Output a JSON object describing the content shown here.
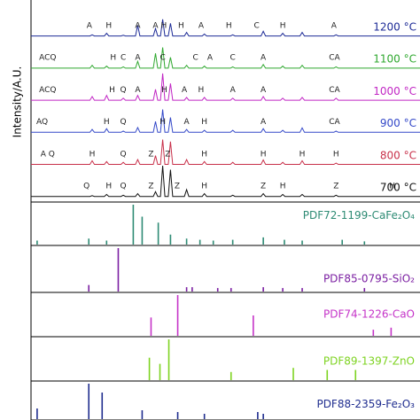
{
  "chart_data": [
    {
      "type": "line",
      "y_label": "Intensity/A.U.",
      "xlim": [
        10,
        80
      ],
      "ylim": [
        0,
        100
      ],
      "x": [
        10,
        20.6,
        21,
        21.4,
        23.2,
        23.6,
        24,
        26.2,
        26.6,
        27,
        28.8,
        29.2,
        29.6,
        32,
        32.4,
        32.8,
        33.3,
        33.7,
        34.1,
        34.7,
        35.1,
        35.5,
        37.6,
        38,
        38.4,
        40.8,
        41.2,
        41.6,
        45.9,
        46.3,
        46.7,
        51.4,
        51.8,
        52.2,
        54.9,
        55.3,
        55.7,
        58.4,
        58.8,
        59.2,
        64.5,
        64.9,
        65.3,
        80
      ],
      "series": [
        {
          "name": "1200 °C",
          "color": "#1c2a96",
          "values": [
            3,
            3,
            6,
            3,
            3,
            10,
            3,
            3,
            5,
            3,
            3,
            30,
            3,
            3,
            22,
            3,
            3,
            45,
            3,
            3,
            35,
            3,
            3,
            12,
            3,
            3,
            8,
            3,
            3,
            6,
            3,
            3,
            15,
            3,
            3,
            10,
            3,
            3,
            12,
            3,
            3,
            6,
            3,
            3
          ],
          "annotations": [
            {
              "text": "A",
              "x": 20.5
            },
            {
              "text": "H",
              "x": 24
            },
            {
              "text": "A",
              "x": 29.2
            },
            {
              "text": "A",
              "x": 32.4
            },
            {
              "text": "H",
              "x": 33.9
            },
            {
              "text": "H",
              "x": 37
            },
            {
              "text": "A",
              "x": 40.6
            },
            {
              "text": "H",
              "x": 45.6
            },
            {
              "text": "C",
              "x": 50.6
            },
            {
              "text": "H",
              "x": 55.3
            },
            {
              "text": "A",
              "x": 64.5
            }
          ]
        },
        {
          "name": "1100 °C",
          "color": "#2fa82f",
          "values": [
            3,
            3,
            10,
            3,
            3,
            8,
            3,
            3,
            6,
            3,
            3,
            20,
            3,
            3,
            40,
            3,
            3,
            55,
            3,
            3,
            30,
            3,
            3,
            10,
            3,
            3,
            8,
            3,
            3,
            6,
            3,
            3,
            12,
            3,
            3,
            8,
            3,
            3,
            10,
            3,
            3,
            6,
            3,
            3
          ],
          "annotations": [
            {
              "text": "ACQ",
              "x": 13
            },
            {
              "text": "H",
              "x": 24.8
            },
            {
              "text": "C",
              "x": 26.6
            },
            {
              "text": "A",
              "x": 29.2
            },
            {
              "text": "C",
              "x": 33.7
            },
            {
              "text": "C",
              "x": 39.6
            },
            {
              "text": "A",
              "x": 42.2
            },
            {
              "text": "C",
              "x": 46.3
            },
            {
              "text": "A",
              "x": 51.8
            },
            {
              "text": "CA",
              "x": 64.6
            }
          ]
        },
        {
          "name": "1000 °C",
          "color": "#c126c4",
          "values": [
            3,
            3,
            12,
            3,
            3,
            15,
            3,
            3,
            8,
            3,
            3,
            15,
            3,
            3,
            30,
            3,
            3,
            70,
            3,
            3,
            45,
            3,
            3,
            10,
            3,
            3,
            10,
            3,
            3,
            8,
            3,
            3,
            12,
            3,
            3,
            8,
            3,
            3,
            10,
            3,
            3,
            8,
            3,
            3
          ],
          "annotations": [
            {
              "text": "ACQ",
              "x": 13
            },
            {
              "text": "H",
              "x": 24.6
            },
            {
              "text": "Q",
              "x": 26.6
            },
            {
              "text": "A",
              "x": 29.2
            },
            {
              "text": "H",
              "x": 34
            },
            {
              "text": "A",
              "x": 37.6
            },
            {
              "text": "H",
              "x": 40.6
            },
            {
              "text": "A",
              "x": 46.3
            },
            {
              "text": "A",
              "x": 51.8
            },
            {
              "text": "CA",
              "x": 64.6
            }
          ]
        },
        {
          "name": "900 °C",
          "color": "#3348c8",
          "values": [
            3,
            3,
            10,
            3,
            3,
            12,
            3,
            3,
            6,
            3,
            3,
            15,
            3,
            3,
            30,
            3,
            3,
            60,
            3,
            3,
            40,
            3,
            3,
            10,
            3,
            3,
            8,
            3,
            3,
            8,
            3,
            3,
            12,
            3,
            3,
            8,
            3,
            3,
            14,
            3,
            3,
            6,
            3,
            3
          ],
          "annotations": [
            {
              "text": "AQ",
              "x": 12
            },
            {
              "text": "H",
              "x": 23.6
            },
            {
              "text": "Q",
              "x": 26.6
            },
            {
              "text": "H",
              "x": 33.7
            },
            {
              "text": "A",
              "x": 38
            },
            {
              "text": "H",
              "x": 41.2
            },
            {
              "text": "A",
              "x": 51.8
            },
            {
              "text": "CA",
              "x": 64.6
            }
          ]
        },
        {
          "name": "800 °C",
          "color": "#c8304a",
          "values": [
            3,
            3,
            12,
            3,
            3,
            10,
            3,
            3,
            8,
            3,
            3,
            15,
            3,
            3,
            25,
            3,
            3,
            65,
            3,
            3,
            60,
            3,
            3,
            15,
            3,
            3,
            10,
            3,
            3,
            8,
            3,
            3,
            14,
            3,
            3,
            8,
            3,
            3,
            12,
            3,
            3,
            6,
            3,
            3
          ],
          "annotations": [
            {
              "text": "A Q",
              "x": 13
            },
            {
              "text": "H",
              "x": 21
            },
            {
              "text": "Q",
              "x": 26.6
            },
            {
              "text": "Z",
              "x": 31.6
            },
            {
              "text": "Z",
              "x": 34.6
            },
            {
              "text": "H",
              "x": 41.2
            },
            {
              "text": "H",
              "x": 51.8
            },
            {
              "text": "H",
              "x": 58.8
            },
            {
              "text": "H",
              "x": 64.9
            }
          ]
        },
        {
          "name": "700 °C",
          "color": "#111111",
          "values": [
            3,
            3,
            5,
            3,
            3,
            8,
            3,
            3,
            6,
            3,
            3,
            10,
            3,
            3,
            15,
            3,
            3,
            80,
            3,
            3,
            70,
            3,
            3,
            20,
            3,
            3,
            10,
            3,
            3,
            6,
            3,
            3,
            10,
            3,
            3,
            8,
            3,
            3,
            8,
            3,
            3,
            6,
            3,
            3
          ],
          "annotations": [
            {
              "text": "Q",
              "x": 20
            },
            {
              "text": "H",
              "x": 24
            },
            {
              "text": "Q",
              "x": 26.6
            },
            {
              "text": "Z",
              "x": 31.6
            },
            {
              "text": "Z",
              "x": 36.3
            },
            {
              "text": "H",
              "x": 41.2
            },
            {
              "text": "Z",
              "x": 51.8
            },
            {
              "text": "H",
              "x": 55.3
            },
            {
              "text": "Z",
              "x": 64.9
            },
            {
              "text": "H",
              "x": 75
            }
          ]
        }
      ]
    },
    {
      "type": "stem",
      "title": "PDF72-1199-CaFe₂O₄",
      "color": "#2e8b74",
      "xlim": [
        10,
        80
      ],
      "ylim": [
        0,
        100
      ],
      "x": [
        11.1,
        20.4,
        23.6,
        28.4,
        30,
        32.9,
        35.1,
        38,
        40.4,
        42.8,
        46.3,
        51.8,
        55.6,
        58.8,
        66,
        70
      ],
      "values": [
        10,
        15,
        10,
        100,
        70,
        55,
        25,
        15,
        12,
        10,
        12,
        18,
        12,
        10,
        12,
        8
      ]
    },
    {
      "type": "stem",
      "title": "PDF85-0795-SiO₂",
      "color": "#7b1fa2",
      "xlim": [
        10,
        80
      ],
      "ylim": [
        0,
        100
      ],
      "x": [
        20.4,
        25.7,
        38,
        39,
        43.6,
        46,
        51.8,
        55.3,
        58.8,
        70
      ],
      "values": [
        15,
        100,
        10,
        10,
        8,
        8,
        10,
        8,
        8,
        8
      ]
    },
    {
      "type": "stem",
      "title": "PDF74-1226-CaO",
      "color": "#c534c8",
      "xlim": [
        10,
        80
      ],
      "ylim": [
        0,
        100
      ],
      "x": [
        31.6,
        36.4,
        50,
        71.6,
        74.8
      ],
      "values": [
        45,
        100,
        50,
        15,
        20
      ]
    },
    {
      "type": "stem",
      "title": "PDF89-1397-ZnO",
      "color": "#7ed321",
      "xlim": [
        10,
        80
      ],
      "ylim": [
        0,
        100
      ],
      "x": [
        31.3,
        33.2,
        34.8,
        46,
        57.2,
        63.3,
        68.4
      ],
      "values": [
        55,
        40,
        100,
        20,
        30,
        25,
        25
      ]
    },
    {
      "type": "stem",
      "title": "PDF88-2359-Fe₂O₃",
      "color": "#1f2d8f",
      "xlim": [
        10,
        80
      ],
      "ylim": [
        0,
        100
      ],
      "x": [
        11.1,
        20.4,
        22.8,
        30,
        36.4,
        41.2,
        50.8,
        51.8
      ],
      "values": [
        30,
        100,
        75,
        25,
        20,
        15,
        20,
        15
      ]
    }
  ]
}
